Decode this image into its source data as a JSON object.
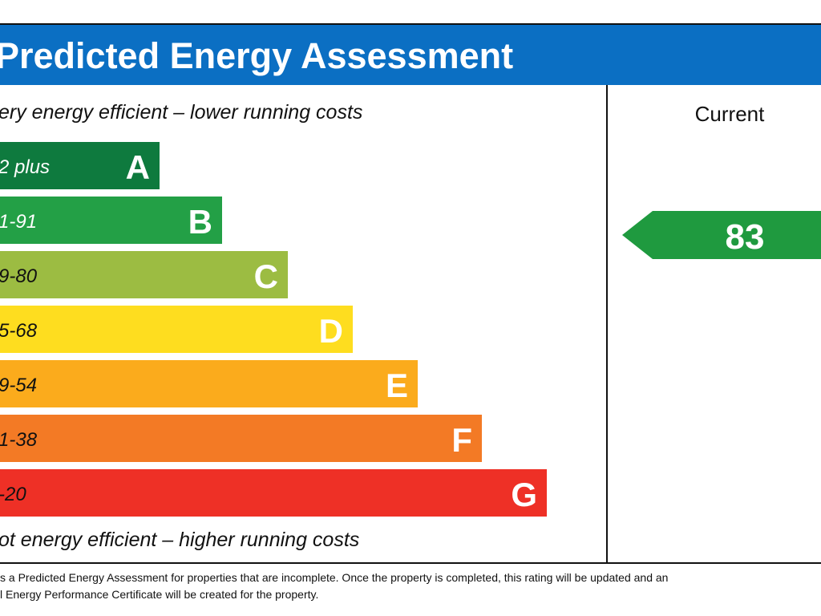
{
  "header": {
    "title": "Predicted Energy Assessment"
  },
  "top_note": "ery energy efficient – lower running costs",
  "bottom_note": "ot energy efficient – higher running costs",
  "bands": [
    {
      "range": "2 plus",
      "letter": "A"
    },
    {
      "range": "1-91",
      "letter": "B"
    },
    {
      "range": "9-80",
      "letter": "C"
    },
    {
      "range": "5-68",
      "letter": "D"
    },
    {
      "range": "9-54",
      "letter": "E"
    },
    {
      "range": "1-38",
      "letter": "F"
    },
    {
      "range": "-20",
      "letter": "G"
    }
  ],
  "current": {
    "label": "Current",
    "value": "83"
  },
  "footnote": [
    "s a Predicted Energy Assessment for properties that are incomplete. Once the property is completed, this rating will be updated and an",
    "l Energy Performance Certificate will be created for the property."
  ]
}
